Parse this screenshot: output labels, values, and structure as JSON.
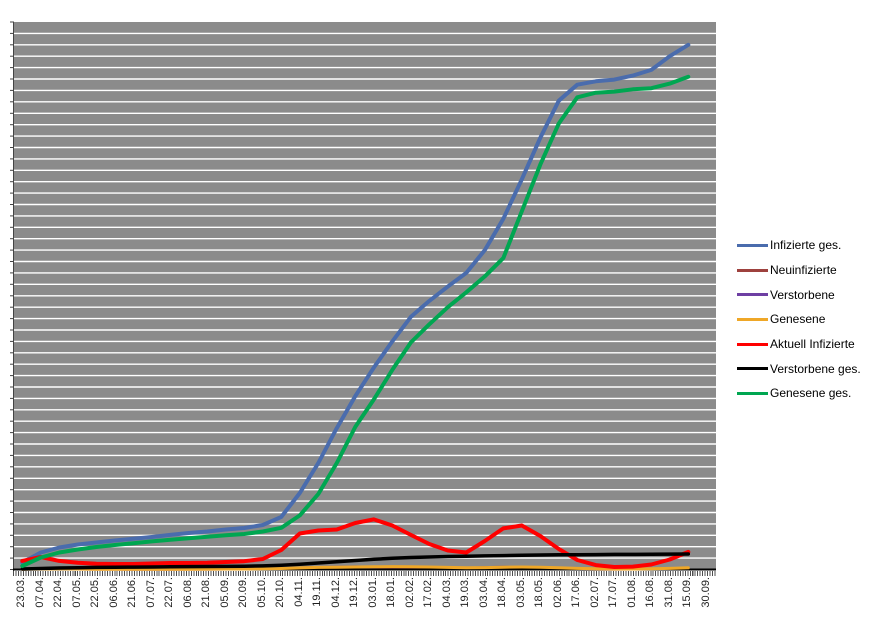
{
  "chart_data": {
    "type": "line",
    "title": "",
    "xlabel": "",
    "ylabel": "",
    "y_axis_labels_visible": false,
    "ylim": [
      0,
      4800000
    ],
    "y_major_divisions": 48,
    "grid": "horizontal white gridlines on gray plot area",
    "legend_position": "right",
    "plot_bg_color": "#8B8B8B",
    "gridline_color": "#FFFFFF",
    "axis_color": "#000000",
    "tick_color": "#4D4D4D",
    "categories": [
      "23.03.",
      "07.04.",
      "22.04.",
      "07.05.",
      "22.05.",
      "06.06.",
      "21.06.",
      "07.07.",
      "22.07.",
      "06.08.",
      "21.08.",
      "05.09.",
      "20.09.",
      "05.10.",
      "20.10.",
      "04.11.",
      "19.11.",
      "04.12.",
      "19.12.",
      "03.01.",
      "18.01.",
      "02.02.",
      "17.02.",
      "04.03.",
      "19.03.",
      "03.04.",
      "18.04.",
      "03.05.",
      "18.05.",
      "02.06.",
      "17.06.",
      "02.07.",
      "17.07.",
      "01.08.",
      "16.08.",
      "31.08.",
      "15.09.",
      "30.09."
    ],
    "series": [
      {
        "name": "Infizierte ges.",
        "color": "#4A6CAD",
        "width": 4,
        "values": [
          61000,
          149000,
          193000,
          219000,
          237000,
          254000,
          269000,
          285000,
          303000,
          320000,
          333000,
          351000,
          364000,
          390000,
          461000,
          671000,
          934000,
          1240000,
          1520000,
          1770000,
          2000000,
          2215000,
          2355000,
          2480000,
          2600000,
          2800000,
          3075000,
          3420000,
          3785000,
          4110000,
          4250000,
          4280000,
          4295000,
          4330000,
          4380000,
          4500000,
          4600000,
          null
        ]
      },
      {
        "name": "Neuinfizierte",
        "color": "#9E413E",
        "width": 2.5,
        "values": [
          500,
          4000,
          2500,
          1500,
          800,
          500,
          400,
          350,
          400,
          600,
          1200,
          1500,
          1800,
          2500,
          7000,
          15000,
          19000,
          22000,
          25000,
          22000,
          15000,
          9000,
          7000,
          8000,
          12000,
          18000,
          22000,
          18000,
          8000,
          3000,
          1500,
          600,
          500,
          1500,
          5000,
          8000,
          10000,
          null
        ]
      },
      {
        "name": "Verstorbene",
        "color": "#6E3FA3",
        "width": 2,
        "values": [
          50,
          150,
          250,
          200,
          120,
          80,
          40,
          30,
          25,
          20,
          20,
          25,
          30,
          40,
          80,
          150,
          300,
          500,
          700,
          800,
          700,
          550,
          400,
          250,
          180,
          150,
          200,
          250,
          180,
          100,
          60,
          40,
          25,
          20,
          20,
          30,
          50,
          null
        ]
      },
      {
        "name": "Genesene",
        "color": "#EFA727",
        "width": 3,
        "values": [
          2000,
          4000,
          5000,
          4000,
          3000,
          2500,
          2000,
          2000,
          2500,
          3000,
          3500,
          4000,
          4500,
          6000,
          9000,
          14000,
          18000,
          20000,
          22000,
          24000,
          25000,
          24000,
          22000,
          18000,
          15000,
          17000,
          20000,
          22000,
          20000,
          16000,
          10000,
          6000,
          4000,
          4000,
          6000,
          10000,
          15000,
          null
        ]
      },
      {
        "name": "Aktuell Infizierte",
        "color": "#FF0000",
        "width": 4,
        "values": [
          75000,
          110000,
          75000,
          60000,
          50000,
          48000,
          48000,
          53000,
          57000,
          57000,
          59000,
          66000,
          73000,
          92000,
          171000,
          316000,
          342000,
          351000,
          408000,
          439000,
          386000,
          303000,
          224000,
          167000,
          149000,
          250000,
          360000,
          386000,
          294000,
          180000,
          83000,
          39000,
          22000,
          25000,
          44000,
          88000,
          154000,
          null
        ]
      },
      {
        "name": "Verstorbene ges.",
        "color": "#000000",
        "width": 3.5,
        "values": [
          4000,
          9000,
          13000,
          15000,
          18000,
          19000,
          21000,
          22000,
          24000,
          25000,
          26000,
          27000,
          29000,
          32000,
          38000,
          46000,
          57000,
          68000,
          79000,
          89000,
          98000,
          105000,
          110000,
          114000,
          117000,
          119000,
          122000,
          125000,
          127000,
          129000,
          130000,
          131000,
          132000,
          132500,
          133000,
          135000,
          136000,
          null
        ]
      },
      {
        "name": "Genesene ges.",
        "color": "#00A651",
        "width": 4,
        "values": [
          31000,
          105000,
          149000,
          175000,
          197000,
          215000,
          231000,
          246000,
          260000,
          274000,
          287000,
          301000,
          311000,
          333000,
          366000,
          474000,
          662000,
          934000,
          1250000,
          1490000,
          1750000,
          1990000,
          2150000,
          2300000,
          2430000,
          2570000,
          2730000,
          3140000,
          3550000,
          3910000,
          4140000,
          4180000,
          4190000,
          4210000,
          4220000,
          4260000,
          4320000,
          null
        ]
      }
    ]
  }
}
